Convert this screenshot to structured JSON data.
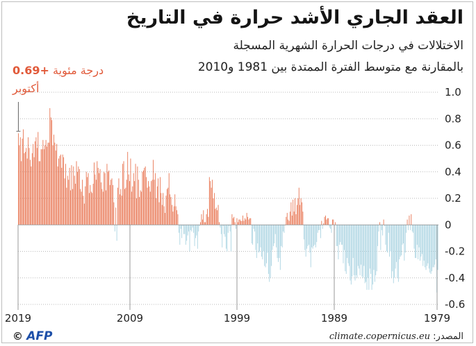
{
  "header": {
    "title": "العقد الجاري الأشد حرارة في التاريخ",
    "subtitle_line1": "الاختلالات في درجات الحرارة الشهرية المسجلة",
    "subtitle_line2": "بالمقارنة مع متوسط الفترة الممتدة بين 1981 و2010"
  },
  "callout": {
    "value": "+0.69",
    "unit": "درجة مئوية",
    "month": "أكتوبر"
  },
  "footer": {
    "source_label": "المصدر:",
    "source_url": "climate.copernicus.eu",
    "credit_copyright": "©",
    "credit_logo": "AFP"
  },
  "colors": {
    "positive": "#e8734f",
    "negative": "#a9d3e1",
    "callout": "#e15a3a"
  },
  "chart_data": {
    "type": "bar",
    "x_direction": "reversed",
    "x_ticks": [
      "2019",
      "2009",
      "1999",
      "1989",
      "1979"
    ],
    "y_ticks": [
      "1.0",
      "0.8",
      "0.6",
      "0.4",
      "0.2",
      "0",
      "-0.2",
      "-0.4",
      "-0.6"
    ],
    "ylim": [
      -0.6,
      1.0
    ],
    "grid": true,
    "series": [
      {
        "values": [
          0.69,
          0.6,
          0.66,
          0.48,
          0.65,
          0.72,
          0.54,
          0.55,
          0.58,
          0.5,
          0.66,
          0.58,
          0.49,
          0.44,
          0.54,
          0.61,
          0.51,
          0.63,
          0.66,
          0.58,
          0.7,
          0.48,
          0.48,
          0.57,
          0.57,
          0.64,
          0.57,
          0.6,
          0.64,
          0.59,
          0.62,
          0.62,
          0.88,
          0.81,
          0.79,
          0.6,
          0.68,
          0.62,
          0.56,
          0.61,
          0.44,
          0.5,
          0.52,
          0.53,
          0.43,
          0.53,
          0.51,
          0.35,
          0.46,
          0.28,
          0.37,
          0.34,
          0.43,
          0.26,
          0.45,
          0.27,
          0.44,
          0.37,
          0.31,
          0.48,
          0.4,
          0.44,
          0.42,
          0.27,
          0.25,
          0.34,
          0.22,
          0.16,
          0.29,
          0.4,
          0.36,
          0.39,
          0.24,
          0.3,
          0.25,
          0.24,
          0.31,
          0.47,
          0.38,
          0.34,
          0.48,
          0.43,
          0.39,
          0.42,
          0.32,
          0.27,
          0.25,
          0.4,
          0.39,
          0.26,
          0.46,
          0.4,
          0.41,
          0.3,
          0.34,
          0.35,
          0.3,
          0.17,
          -0.05,
          0.13,
          -0.12,
          0.28,
          0.35,
          0.23,
          0.27,
          0.22,
          0.46,
          0.48,
          0.27,
          0.28,
          0.34,
          0.55,
          0.38,
          0.33,
          0.5,
          0.25,
          0.29,
          0.39,
          0.33,
          0.46,
          0.2,
          0.44,
          0.34,
          0.21,
          0.26,
          0.25,
          0.4,
          0.41,
          0.43,
          0.44,
          0.36,
          0.28,
          0.33,
          0.29,
          0.25,
          0.33,
          0.34,
          0.49,
          0.34,
          0.39,
          0.2,
          0.29,
          0.35,
          0.17,
          0.36,
          0.24,
          0.15,
          0.24,
          0.14,
          0.09,
          0.22,
          0.27,
          0.28,
          0.39,
          0.23,
          0.21,
          0.15,
          0.1,
          0.14,
          0.23,
          0.14,
          0.11,
          0.08,
          -0.06,
          -0.15,
          -0.03,
          -0.1,
          -0.01,
          -0.07,
          -0.07,
          -0.15,
          -0.12,
          -0.08,
          -0.05,
          -0.2,
          -0.04,
          -0.05,
          -0.02,
          -0.06,
          -0.16,
          -0.1,
          -0.08,
          -0.18,
          -0.05,
          -0.01,
          0.02,
          0.08,
          0.04,
          0.11,
          0.02,
          0.02,
          0.08,
          0.12,
          0.06,
          0.36,
          0.33,
          0.28,
          0.34,
          0.2,
          0.24,
          0.12,
          0.13,
          0.11,
          0.15,
          0.02,
          -0.02,
          -0.07,
          -0.17,
          -0.01,
          -0.07,
          -0.09,
          -0.18,
          -0.2,
          -0.06,
          -0.01,
          -0.05,
          -0.2,
          0.08,
          0.05,
          0.06,
          0.02,
          -0.03,
          0.05,
          0.02,
          0.04,
          0.04,
          0.03,
          0.03,
          0.07,
          0.03,
          0.05,
          0.04,
          0.09,
          0.06,
          0.04,
          0.05,
          0.05,
          -0.14,
          -0.15,
          -0.03,
          -0.05,
          -0.19,
          -0.25,
          -0.14,
          -0.21,
          -0.2,
          -0.17,
          -0.24,
          -0.26,
          -0.2,
          -0.31,
          -0.32,
          -0.29,
          -0.21,
          -0.37,
          -0.43,
          -0.4,
          -0.31,
          -0.19,
          -0.16,
          -0.14,
          -0.07,
          -0.17,
          -0.25,
          -0.28,
          -0.25,
          -0.34,
          -0.16,
          -0.17,
          -0.05,
          -0.06,
          0.0,
          0.06,
          0.09,
          0.04,
          0.03,
          0.1,
          0.17,
          0.07,
          0.19,
          0.1,
          0.2,
          0.08,
          0.15,
          0.2,
          0.28,
          0.15,
          0.2,
          0.17,
          0.1,
          -0.11,
          -0.19,
          -0.24,
          -0.18,
          -0.16,
          -0.15,
          -0.21,
          -0.32,
          -0.17,
          -0.18,
          -0.16,
          -0.15,
          -0.17,
          -0.13,
          -0.06,
          -0.04,
          -0.04,
          -0.1,
          0.03,
          -0.03,
          0.01,
          0.06,
          0.07,
          0.04,
          0.05,
          0.05,
          -0.02,
          -0.03,
          -0.06,
          0.04,
          0.04,
          -0.04,
          0.02,
          -0.16,
          -0.16,
          -0.26,
          -0.15,
          -0.13,
          -0.15,
          -0.15,
          -0.29,
          -0.19,
          -0.35,
          -0.37,
          -0.25,
          -0.29,
          -0.31,
          -0.42,
          -0.45,
          -0.39,
          -0.25,
          -0.38,
          -0.42,
          -0.38,
          -0.4,
          -0.31,
          -0.33,
          -0.38,
          -0.3,
          -0.39,
          -0.4,
          -0.31,
          -0.44,
          -0.43,
          -0.49,
          -0.4,
          -0.49,
          -0.33,
          -0.37,
          -0.49,
          -0.45,
          -0.34,
          -0.43,
          -0.38,
          -0.35,
          -0.16,
          -0.05,
          0.02,
          -0.19,
          -0.04,
          -0.08,
          0.04,
          -0.01,
          -0.15,
          -0.2,
          -0.21,
          -0.06,
          -0.24,
          -0.2,
          -0.4,
          -0.35,
          -0.44,
          -0.4,
          -0.33,
          -0.28,
          -0.4,
          -0.43,
          -0.26,
          -0.24,
          -0.23,
          -0.15,
          -0.14,
          -0.27,
          -0.21,
          -0.06,
          0.04,
          -0.04,
          0.07,
          -0.04,
          0.08,
          -0.05,
          -0.06,
          -0.18,
          -0.25,
          -0.25,
          -0.15,
          -0.26,
          -0.17,
          -0.27,
          -0.24,
          -0.22,
          -0.31,
          -0.27,
          -0.32,
          -0.34,
          -0.31,
          -0.29,
          -0.33,
          -0.36,
          -0.37,
          -0.35,
          -0.32,
          -0.32,
          -0.3,
          -0.26,
          -0.51,
          -0.34
        ]
      }
    ]
  }
}
